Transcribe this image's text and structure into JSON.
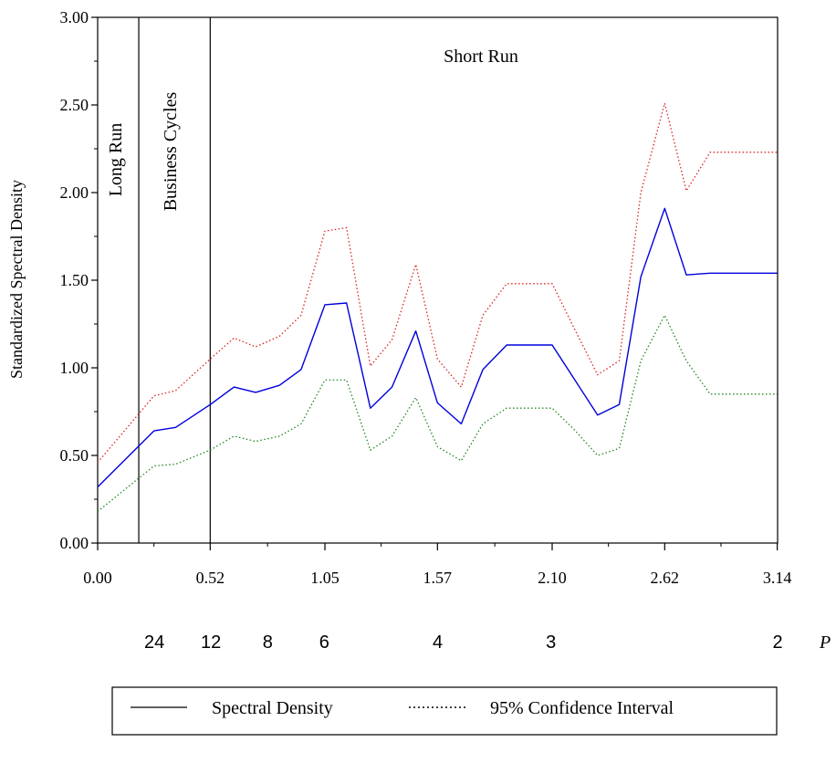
{
  "chart_data": {
    "type": "line",
    "ylabel": "Standardized Spectral Density",
    "xlim": [
      0,
      3.14159
    ],
    "ylim": [
      0,
      3.0
    ],
    "x_ticks": [
      0.0,
      0.52,
      1.05,
      1.57,
      2.1,
      2.62,
      3.14
    ],
    "x_tick_labels": [
      "0.00",
      "0.52",
      "1.05",
      "1.57",
      "2.10",
      "2.62",
      "3.14"
    ],
    "y_ticks": [
      0,
      0.5,
      1.0,
      1.5,
      2.0,
      2.5,
      3.0
    ],
    "y_tick_labels": [
      "0.00",
      "0.50",
      "1.00",
      "1.50",
      "2.00",
      "2.50",
      "3.00"
    ],
    "period_ticks": [
      {
        "x": 0.2618,
        "label": "24"
      },
      {
        "x": 0.5236,
        "label": "12"
      },
      {
        "x": 0.7854,
        "label": "8"
      },
      {
        "x": 1.0472,
        "label": "6"
      },
      {
        "x": 1.5708,
        "label": "4"
      },
      {
        "x": 2.0944,
        "label": "3"
      },
      {
        "x": 3.1416,
        "label": "2"
      }
    ],
    "period_axis_label": "P",
    "regions": [
      {
        "label": "Long Run"
      },
      {
        "label": "Business Cycles"
      },
      {
        "label": "Short Run"
      }
    ],
    "region_boundaries": [
      0.19,
      0.52
    ],
    "x": [
      0.0,
      0.26,
      0.36,
      0.52,
      0.63,
      0.73,
      0.84,
      0.94,
      1.05,
      1.15,
      1.26,
      1.36,
      1.47,
      1.57,
      1.68,
      1.78,
      1.89,
      1.99,
      2.1,
      2.2,
      2.31,
      2.41,
      2.51,
      2.62,
      2.72,
      2.83,
      2.93,
      3.04,
      3.14
    ],
    "series": [
      {
        "name": "Spectral Density",
        "color": "#0000dd",
        "style": "solid",
        "values": [
          0.32,
          0.64,
          0.66,
          0.79,
          0.89,
          0.86,
          0.9,
          0.99,
          1.36,
          1.37,
          0.77,
          0.89,
          1.21,
          0.8,
          0.68,
          0.99,
          1.13,
          1.13,
          1.13,
          0.94,
          0.73,
          0.79,
          1.52,
          1.91,
          1.53,
          1.54,
          1.54,
          1.54,
          1.54
        ]
      },
      {
        "name": "95% Confidence Interval",
        "color": "#dd2222",
        "style": "dotted",
        "values": [
          0.46,
          0.84,
          0.87,
          1.05,
          1.17,
          1.12,
          1.18,
          1.3,
          1.78,
          1.8,
          1.01,
          1.16,
          1.59,
          1.05,
          0.89,
          1.3,
          1.48,
          1.48,
          1.48,
          1.23,
          0.96,
          1.04,
          2.0,
          2.51,
          2.01,
          2.23,
          2.23,
          2.23,
          2.23
        ]
      },
      {
        "name": "95% Confidence Interval (lower)",
        "color": "#228822",
        "style": "dotted",
        "values": [
          0.18,
          0.44,
          0.45,
          0.53,
          0.61,
          0.58,
          0.61,
          0.68,
          0.93,
          0.93,
          0.53,
          0.61,
          0.83,
          0.55,
          0.47,
          0.68,
          0.77,
          0.77,
          0.77,
          0.65,
          0.5,
          0.54,
          1.04,
          1.3,
          1.04,
          0.85,
          0.85,
          0.85,
          0.85
        ]
      }
    ],
    "legend": {
      "placement": "bottom",
      "entries": [
        {
          "label": "Spectral Density",
          "style": "solid"
        },
        {
          "label": "95% Confidence Interval",
          "style": "dotted"
        }
      ]
    },
    "grid": false
  }
}
